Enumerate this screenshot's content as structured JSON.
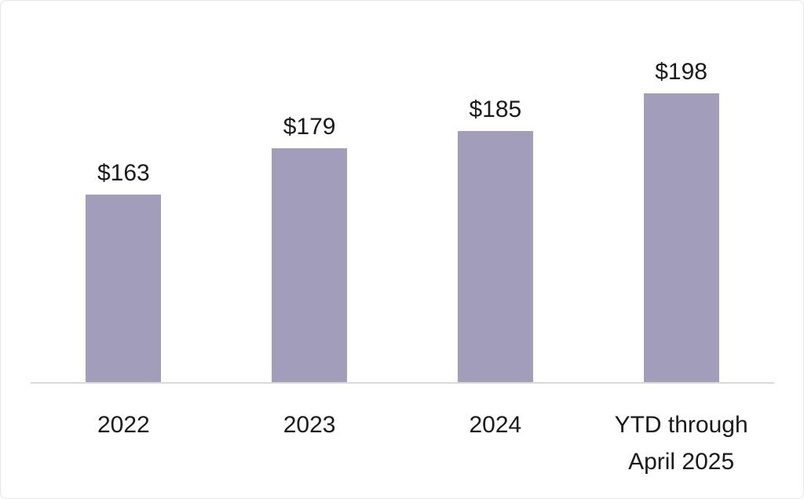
{
  "figure": {
    "background": "#ffffff",
    "border_color": "#e5e5e8"
  },
  "chart_data": {
    "type": "bar",
    "categories": [
      "2022",
      "2023",
      "2024",
      "YTD through April 2025"
    ],
    "values": [
      163,
      179,
      185,
      198
    ],
    "value_labels": [
      "$163",
      "$179",
      "$185",
      "$198"
    ],
    "bar_color": "#a29eba",
    "text_color": "#1a1a1a",
    "axis_line_color": "#d9d9d9",
    "ylim": [
      98,
      230
    ],
    "grid": false,
    "legend": false,
    "layout_hint": "single series, value labels above bars, x labels below axis"
  }
}
